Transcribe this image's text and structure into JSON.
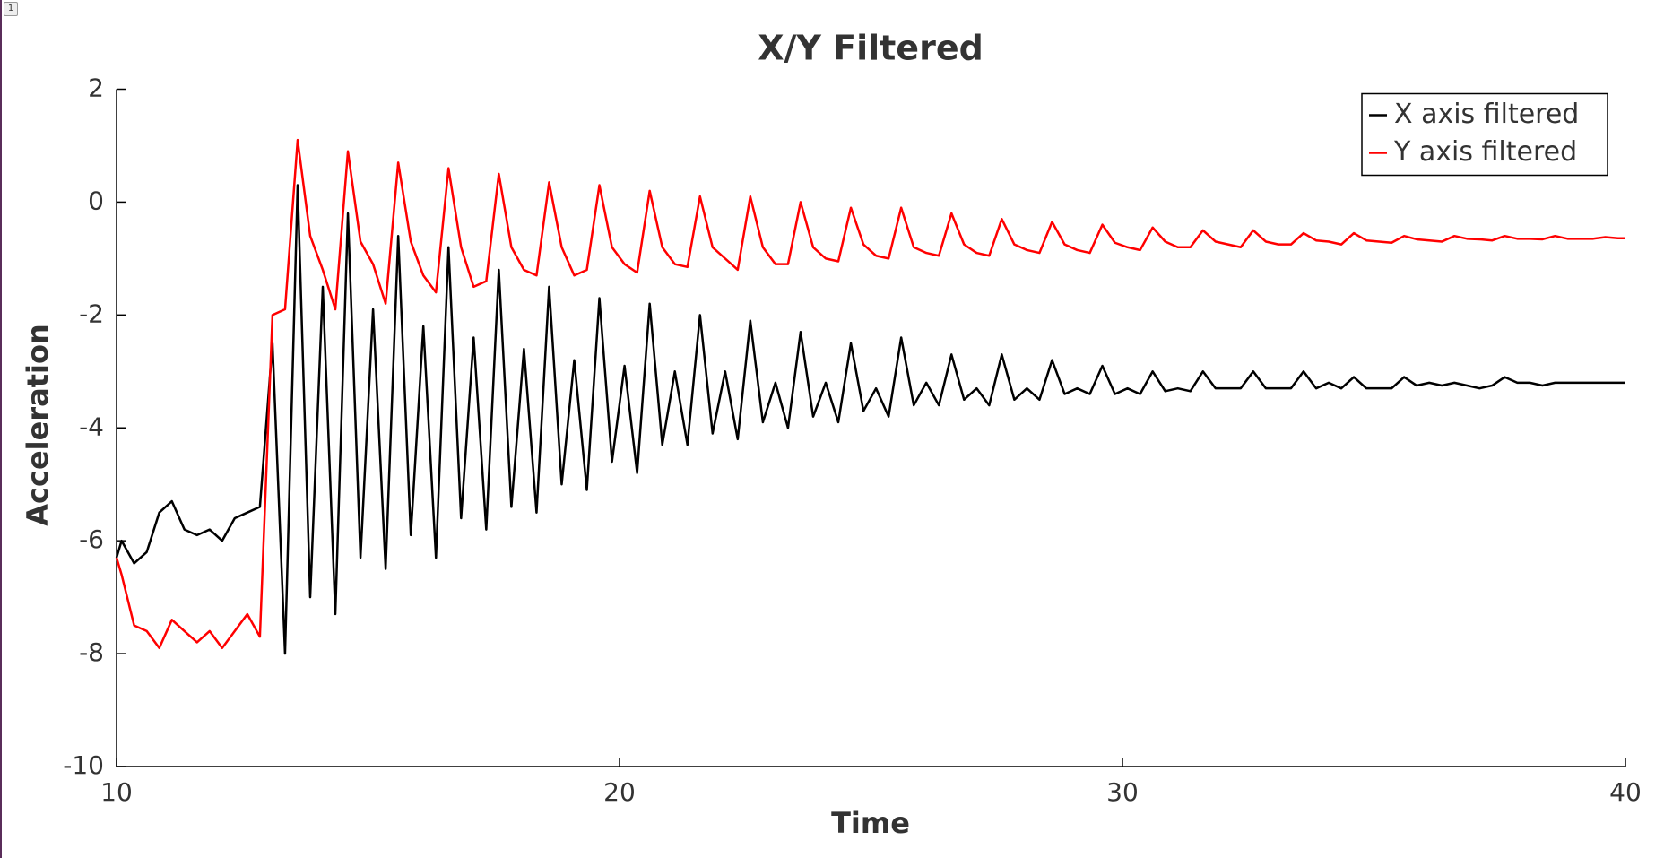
{
  "badge": "1",
  "chart_data": {
    "type": "line",
    "title": "X/Y Filtered",
    "xlabel": "Time",
    "ylabel": "Acceleration",
    "x": [
      10,
      10.1,
      10.35,
      10.6,
      10.85,
      11.1,
      11.35,
      11.6,
      11.85,
      12.1,
      12.35,
      12.6,
      12.85,
      13.1,
      13.35,
      13.6,
      13.85,
      14.1,
      14.35,
      14.6,
      14.85,
      15.1,
      15.35,
      15.6,
      15.85,
      16.1,
      16.35,
      16.6,
      16.85,
      17.1,
      17.35,
      17.6,
      17.85,
      18.1,
      18.35,
      18.6,
      18.85,
      19.1,
      19.35,
      19.6,
      19.85,
      20.1,
      20.35,
      20.6,
      20.85,
      21.1,
      21.35,
      21.6,
      21.85,
      22.1,
      22.35,
      22.6,
      22.85,
      23.1,
      23.35,
      23.6,
      23.85,
      24.1,
      24.35,
      24.6,
      24.85,
      25.1,
      25.35,
      25.6,
      25.85,
      26.1,
      26.35,
      26.6,
      26.85,
      27.1,
      27.35,
      27.6,
      27.85,
      28.1,
      28.35,
      28.6,
      28.85,
      29.1,
      29.35,
      29.6,
      29.85,
      30.1,
      30.35,
      30.6,
      30.85,
      31.1,
      31.35,
      31.6,
      31.85,
      32.1,
      32.35,
      32.6,
      32.85,
      33.1,
      33.35,
      33.6,
      33.85,
      34.1,
      34.35,
      34.6,
      34.85,
      35.1,
      35.35,
      35.6,
      35.85,
      36.1,
      36.35,
      36.6,
      36.85,
      37.1,
      37.35,
      37.6,
      37.85,
      38.1,
      38.35,
      38.6,
      38.85,
      39.1,
      39.35,
      39.6,
      39.85,
      40
    ],
    "series": [
      {
        "name": "X axis filtered",
        "color": "#000000",
        "values": [
          -6.3,
          -6.0,
          -6.4,
          -6.2,
          -5.5,
          -5.3,
          -5.8,
          -5.9,
          -5.8,
          -6.0,
          -5.6,
          -5.5,
          -5.4,
          -2.5,
          -8.0,
          0.3,
          -7.0,
          -1.5,
          -7.3,
          -0.2,
          -6.3,
          -1.9,
          -6.5,
          -0.6,
          -5.9,
          -2.2,
          -6.3,
          -0.8,
          -5.6,
          -2.4,
          -5.8,
          -1.2,
          -5.4,
          -2.6,
          -5.5,
          -1.5,
          -5.0,
          -2.8,
          -5.1,
          -1.7,
          -4.6,
          -2.9,
          -4.8,
          -1.8,
          -4.3,
          -3.0,
          -4.3,
          -2.0,
          -4.1,
          -3.0,
          -4.2,
          -2.1,
          -3.9,
          -3.2,
          -4.0,
          -2.3,
          -3.8,
          -3.2,
          -3.9,
          -2.5,
          -3.7,
          -3.3,
          -3.8,
          -2.4,
          -3.6,
          -3.2,
          -3.6,
          -2.7,
          -3.5,
          -3.3,
          -3.6,
          -2.7,
          -3.5,
          -3.3,
          -3.5,
          -2.8,
          -3.4,
          -3.3,
          -3.4,
          -2.9,
          -3.4,
          -3.3,
          -3.4,
          -3.0,
          -3.35,
          -3.3,
          -3.35,
          -3.0,
          -3.3,
          -3.3,
          -3.3,
          -3.0,
          -3.3,
          -3.3,
          -3.3,
          -3.0,
          -3.3,
          -3.2,
          -3.3,
          -3.1,
          -3.3,
          -3.3,
          -3.3,
          -3.1,
          -3.25,
          -3.2,
          -3.25,
          -3.2,
          -3.25,
          -3.3,
          -3.25,
          -3.1,
          -3.2,
          -3.2,
          -3.25,
          -3.2,
          -3.2,
          -3.2,
          -3.2,
          -3.2,
          -3.2,
          -3.2
        ]
      },
      {
        "name": "Y axis filtered",
        "color": "#ff0000",
        "values": [
          -6.3,
          -6.6,
          -7.5,
          -7.6,
          -7.9,
          -7.4,
          -7.6,
          -7.8,
          -7.6,
          -7.9,
          -7.6,
          -7.3,
          -7.7,
          -2.0,
          -1.9,
          1.1,
          -0.6,
          -1.2,
          -1.9,
          0.9,
          -0.7,
          -1.1,
          -1.8,
          0.7,
          -0.7,
          -1.3,
          -1.6,
          0.6,
          -0.8,
          -1.5,
          -1.4,
          0.5,
          -0.8,
          -1.2,
          -1.3,
          0.35,
          -0.8,
          -1.3,
          -1.2,
          0.3,
          -0.8,
          -1.1,
          -1.25,
          0.2,
          -0.8,
          -1.1,
          -1.15,
          0.1,
          -0.8,
          -1.0,
          -1.2,
          0.1,
          -0.8,
          -1.1,
          -1.1,
          0.0,
          -0.8,
          -1.0,
          -1.05,
          -0.1,
          -0.75,
          -0.95,
          -1.0,
          -0.1,
          -0.8,
          -0.9,
          -0.95,
          -0.2,
          -0.75,
          -0.9,
          -0.95,
          -0.3,
          -0.75,
          -0.85,
          -0.9,
          -0.35,
          -0.75,
          -0.85,
          -0.9,
          -0.4,
          -0.72,
          -0.8,
          -0.85,
          -0.45,
          -0.7,
          -0.8,
          -0.8,
          -0.5,
          -0.7,
          -0.75,
          -0.8,
          -0.5,
          -0.7,
          -0.75,
          -0.75,
          -0.55,
          -0.68,
          -0.7,
          -0.75,
          -0.55,
          -0.68,
          -0.7,
          -0.72,
          -0.6,
          -0.66,
          -0.68,
          -0.7,
          -0.6,
          -0.65,
          -0.66,
          -0.68,
          -0.6,
          -0.65,
          -0.65,
          -0.66,
          -0.6,
          -0.65,
          -0.65,
          -0.65,
          -0.62,
          -0.64,
          -0.64
        ]
      }
    ],
    "xlim": [
      10,
      40
    ],
    "xticks": [
      10,
      20,
      30,
      40
    ],
    "ylim": [
      -10,
      2
    ],
    "yticks": [
      2,
      0,
      -2,
      -4,
      -6,
      -8,
      -10
    ],
    "grid": false,
    "legend": "upper right"
  }
}
